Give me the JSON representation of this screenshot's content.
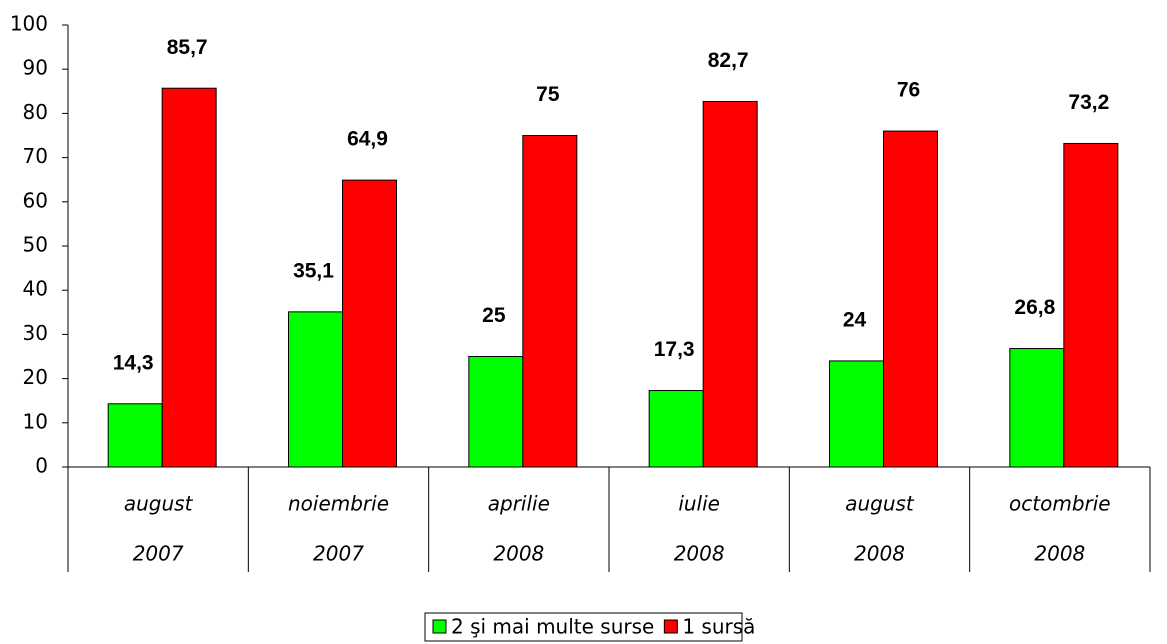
{
  "chart_data": {
    "type": "bar",
    "categories": [
      [
        "august",
        "2007"
      ],
      [
        "noiembrie",
        "2007"
      ],
      [
        "aprilie",
        "2008"
      ],
      [
        "iulie",
        "2008"
      ],
      [
        "august",
        "2008"
      ],
      [
        "octombrie",
        "2008"
      ]
    ],
    "series": [
      {
        "name": "2 şi mai multe surse",
        "color": "#00ff00",
        "values": [
          14.3,
          35.1,
          25,
          17.3,
          24,
          26.8
        ],
        "value_labels": [
          "14,3",
          "35,1",
          "25",
          "17,3",
          "24",
          "26,8"
        ]
      },
      {
        "name": "1 sursă",
        "color": "#ff0000",
        "values": [
          85.7,
          64.9,
          75,
          82.7,
          76,
          73.2
        ],
        "value_labels": [
          "85,7",
          "64,9",
          "75",
          "82,7",
          "76",
          "73,2"
        ]
      }
    ],
    "ylim": [
      0,
      100
    ],
    "yticks": [
      0,
      10,
      20,
      30,
      40,
      50,
      60,
      70,
      80,
      90,
      100
    ],
    "grid": false,
    "legend": "bottom"
  }
}
